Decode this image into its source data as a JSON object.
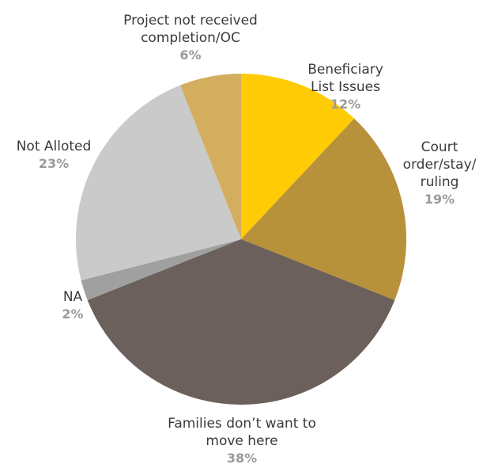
{
  "chart_data": {
    "type": "pie",
    "title": "",
    "slices": [
      {
        "name_lines": [
          "Beneficiary",
          "List Issues"
        ],
        "value": 12,
        "label": "12%",
        "color": "#ffcb05"
      },
      {
        "name_lines": [
          "Court",
          "order/stay/",
          "ruling"
        ],
        "value": 19,
        "label": "19%",
        "color": "#b8923a"
      },
      {
        "name_lines": [
          "Families don’t want to",
          "move here"
        ],
        "value": 38,
        "label": "38%",
        "color": "#6b605b"
      },
      {
        "name_lines": [
          "NA"
        ],
        "value": 2,
        "label": "2%",
        "color": "#a0a0a0"
      },
      {
        "name_lines": [
          "Not Alloted"
        ],
        "value": 23,
        "label": "23%",
        "color": "#cacaca"
      },
      {
        "name_lines": [
          "Project not received",
          "completion/OC"
        ],
        "value": 6,
        "label": "6%",
        "color": "#d3ae5e"
      }
    ]
  }
}
